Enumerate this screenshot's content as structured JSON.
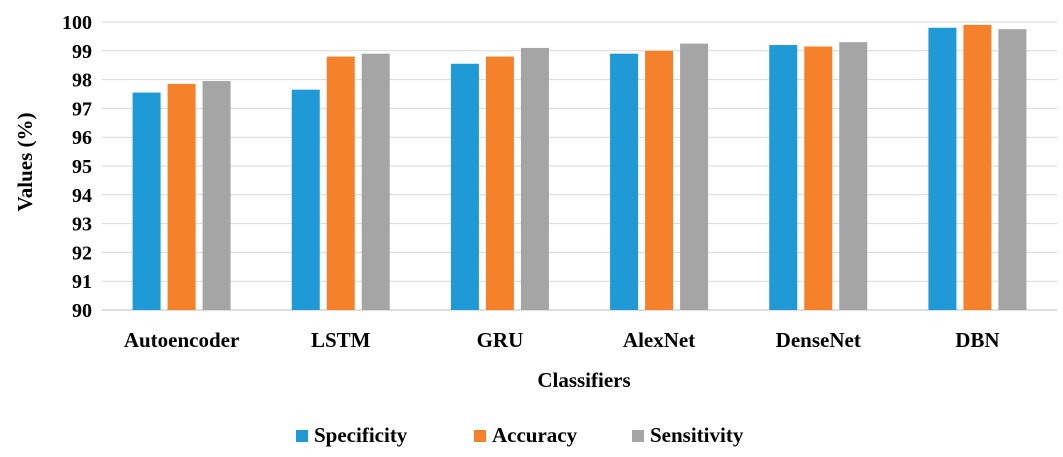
{
  "chart_data": {
    "type": "bar",
    "title": "",
    "xlabel": "Classifiers",
    "ylabel": "Values (%)",
    "ylim": [
      90,
      100
    ],
    "yticks": [
      90,
      91,
      92,
      93,
      94,
      95,
      96,
      97,
      98,
      99,
      100
    ],
    "grid": true,
    "legend_position": "bottom",
    "categories": [
      "Autoencoder",
      "LSTM",
      "GRU",
      "AlexNet",
      "DenseNet",
      "DBN"
    ],
    "series": [
      {
        "name": "Specificity",
        "color": "#1f9ad6",
        "values": [
          97.55,
          97.65,
          98.55,
          98.9,
          99.2,
          99.8
        ]
      },
      {
        "name": "Accuracy",
        "color": "#f5822a",
        "values": [
          97.85,
          98.8,
          98.8,
          99.0,
          99.15,
          99.9
        ]
      },
      {
        "name": "Sensitivity",
        "color": "#a5a5a5",
        "values": [
          97.95,
          98.9,
          99.1,
          99.25,
          99.3,
          99.75
        ]
      }
    ]
  }
}
